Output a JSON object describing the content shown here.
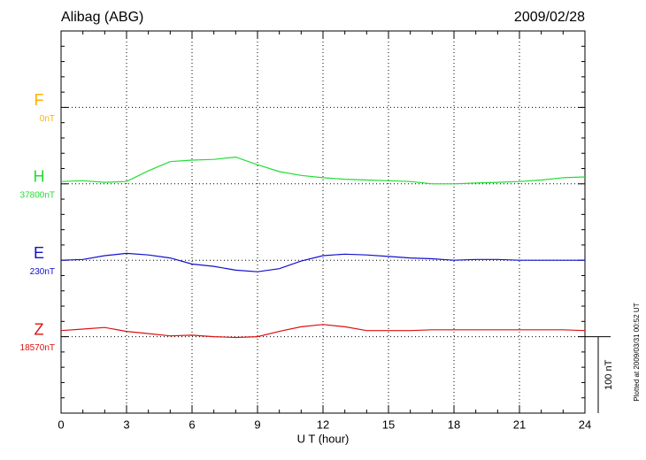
{
  "chart_data": {
    "type": "line",
    "title": "Alibag (ABG)",
    "date": "2009/02/28",
    "x_label": "U T (hour)",
    "footer": "Plotted at 2009/03/31 00:52 UT",
    "x": [
      0,
      1,
      2,
      3,
      4,
      5,
      6,
      7,
      8,
      9,
      10,
      11,
      12,
      13,
      14,
      15,
      16,
      17,
      18,
      19,
      20,
      21,
      22,
      23,
      24
    ],
    "xlim": [
      0,
      24
    ],
    "xticks": [
      0,
      3,
      6,
      9,
      12,
      15,
      18,
      21,
      24
    ],
    "grid": true,
    "scale_bar": {
      "value": 100,
      "label": "100 nT"
    },
    "series": [
      {
        "name": "F",
        "color": "#ffb000",
        "baseline": {
          "value": 0,
          "label": "0nT"
        },
        "values": [
          null,
          null,
          null,
          null,
          null,
          null,
          null,
          null,
          null,
          null,
          null,
          null,
          null,
          null,
          null,
          null,
          null,
          null,
          null,
          null,
          null,
          null,
          null,
          null,
          null
        ]
      },
      {
        "name": "H",
        "color": "#22dd33",
        "baseline": {
          "value": 37800,
          "label": "37800nT"
        },
        "values": [
          37803,
          37804,
          37802,
          37803,
          37817,
          37829,
          37831,
          37832,
          37835,
          37825,
          37816,
          37811,
          37808,
          37806,
          37805,
          37804,
          37803,
          37800,
          37800,
          37801,
          37802,
          37803,
          37805,
          37808,
          37809
        ]
      },
      {
        "name": "E",
        "color": "#1010cc",
        "baseline": {
          "value": 230,
          "label": "230nT"
        },
        "values": [
          230,
          231,
          236,
          239,
          237,
          233,
          225,
          222,
          217,
          215,
          219,
          229,
          236,
          238,
          237,
          235,
          233,
          232,
          230,
          231,
          231,
          230,
          230,
          230,
          230
        ]
      },
      {
        "name": "Z",
        "color": "#dd1111",
        "baseline": {
          "value": 18570,
          "label": "18570nT"
        },
        "values": [
          18578,
          18580,
          18582,
          18577,
          18574,
          18571,
          18572,
          18570,
          18569,
          18570,
          18577,
          18583,
          18586,
          18583,
          18578,
          18578,
          18578,
          18579,
          18579,
          18579,
          18579,
          18579,
          18579,
          18579,
          18578
        ]
      }
    ]
  }
}
